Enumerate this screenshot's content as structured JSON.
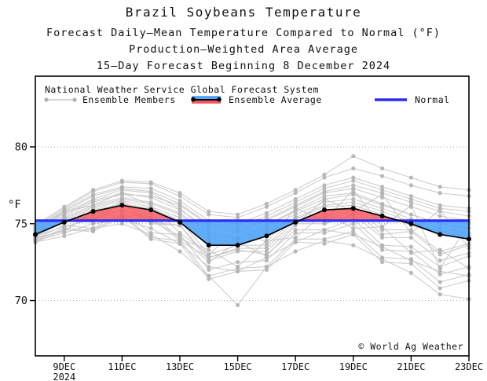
{
  "chart_data": {
    "type": "line",
    "title": "Brazil Soybeans Temperature",
    "subtitles": [
      "Forecast Daily–Mean Temperature Compared to Normal (°F)",
      "Production–Weighted Area Average",
      "15–Day Forecast Beginning 8 December 2024"
    ],
    "ylabel": "°F",
    "watermark": "© World Ag Weather",
    "legend": {
      "header": "National Weather Service Global Forecast System",
      "members_label": "Ensemble Members",
      "average_label": "Ensemble Average",
      "normal_label": "Normal",
      "position": "top-left-inside"
    },
    "grid": "dotted-horizontal",
    "days": [
      8,
      9,
      10,
      11,
      12,
      13,
      14,
      15,
      16,
      17,
      18,
      19,
      20,
      21,
      22,
      23
    ],
    "xtick_days": [
      9,
      11,
      13,
      15,
      17,
      19,
      21,
      23
    ],
    "xtick_labels": [
      "9DEC",
      "11DEC",
      "13DEC",
      "15DEC",
      "17DEC",
      "19DEC",
      "21DEC",
      "23DEC"
    ],
    "year_label": "2024",
    "yticks": [
      70,
      75,
      80
    ],
    "ylim": [
      66.4,
      84.6
    ],
    "normal": 75.2,
    "ensemble_average": [
      74.3,
      75.1,
      75.8,
      76.2,
      75.9,
      75.1,
      73.6,
      73.6,
      74.2,
      75.1,
      75.9,
      76.0,
      75.5,
      75.0,
      74.3,
      74.0
    ],
    "ensemble_members": [
      [
        74.0,
        74.6,
        75.6,
        75.2,
        75.4,
        73.9,
        72.8,
        73.3,
        73.0,
        74.6,
        74.6,
        75.3,
        73.6,
        73.5,
        72.2,
        72.9
      ],
      [
        74.5,
        75.5,
        76.4,
        76.9,
        76.8,
        76.2,
        74.9,
        74.6,
        75.3,
        76.2,
        77.1,
        77.5,
        77.0,
        76.4,
        75.8,
        75.5
      ],
      [
        74.2,
        75.3,
        75.2,
        76.4,
        75.1,
        74.9,
        72.8,
        73.4,
        73.4,
        75.2,
        75.2,
        75.9,
        74.3,
        74.5,
        73.0,
        73.6
      ],
      [
        74.6,
        75.7,
        76.6,
        77.2,
        77.0,
        76.0,
        74.4,
        74.0,
        74.9,
        75.9,
        76.8,
        77.0,
        76.3,
        75.6,
        75.0,
        74.7
      ],
      [
        73.9,
        74.4,
        75.0,
        75.3,
        74.7,
        73.7,
        72.2,
        71.9,
        72.8,
        73.8,
        74.6,
        74.3,
        73.5,
        72.6,
        71.9,
        71.6
      ],
      [
        74.7,
        75.9,
        76.9,
        77.4,
        77.3,
        76.5,
        75.2,
        75.0,
        75.7,
        76.6,
        77.5,
        78.0,
        77.4,
        76.8,
        76.2,
        76.0
      ],
      [
        74.1,
        74.5,
        75.8,
        75.4,
        75.7,
        74.0,
        73.3,
        72.2,
        73.9,
        74.1,
        75.7,
        74.7,
        74.8,
        73.1,
        73.3,
        72.1
      ],
      [
        74.4,
        75.3,
        76.1,
        76.6,
        76.3,
        75.6,
        74.2,
        73.9,
        74.7,
        75.6,
        76.4,
        76.6,
        76.0,
        75.3,
        74.7,
        74.4
      ],
      [
        73.8,
        74.6,
        74.5,
        75.5,
        74.0,
        73.7,
        71.4,
        71.9,
        72.0,
        73.8,
        73.7,
        74.3,
        72.5,
        72.4,
        70.8,
        71.3
      ],
      [
        74.8,
        76.0,
        77.1,
        77.7,
        77.6,
        76.8,
        75.6,
        75.4,
        76.1,
        77.0,
        78.0,
        78.6,
        78.1,
        77.5,
        77.0,
        76.8
      ],
      [
        74.2,
        75.4,
        75.3,
        76.5,
        75.3,
        75.2,
        73.0,
        73.6,
        73.6,
        75.4,
        75.4,
        76.1,
        74.6,
        74.6,
        73.2,
        73.7
      ],
      [
        74.5,
        75.4,
        76.2,
        76.7,
        76.4,
        75.7,
        74.4,
        74.1,
        74.9,
        75.8,
        76.6,
        76.9,
        76.2,
        75.6,
        75.0,
        74.7
      ],
      [
        74.0,
        74.9,
        74.7,
        75.8,
        74.4,
        74.3,
        72.0,
        72.5,
        72.6,
        74.4,
        74.4,
        75.0,
        73.3,
        73.2,
        71.7,
        72.2
      ],
      [
        74.6,
        75.6,
        76.5,
        77.0,
        76.7,
        75.9,
        74.7,
        74.5,
        75.2,
        76.1,
        77.0,
        77.3,
        76.7,
        76.1,
        75.5,
        75.2
      ],
      [
        73.9,
        74.7,
        74.6,
        75.6,
        74.1,
        73.9,
        71.6,
        72.1,
        72.2,
        74.0,
        74.0,
        74.5,
        72.8,
        72.7,
        71.2,
        71.7
      ],
      [
        74.7,
        75.8,
        76.8,
        77.3,
        77.1,
        76.3,
        75.0,
        74.8,
        75.5,
        76.4,
        77.3,
        77.8,
        77.2,
        76.6,
        76.0,
        75.8
      ],
      [
        74.1,
        75.2,
        75.1,
        76.3,
        75.0,
        74.9,
        72.6,
        73.2,
        73.2,
        75.0,
        75.0,
        75.6,
        74.1,
        74.1,
        72.6,
        73.1
      ],
      [
        74.4,
        75.2,
        76.0,
        76.5,
        76.1,
        75.4,
        74.0,
        73.7,
        74.5,
        75.4,
        76.2,
        76.4,
        75.8,
        75.1,
        74.5,
        74.2
      ],
      [
        73.8,
        74.2,
        74.7,
        75.0,
        74.3,
        73.2,
        71.6,
        69.7,
        72.2,
        73.2,
        73.9,
        73.6,
        72.7,
        71.8,
        70.4,
        70.1
      ],
      [
        74.9,
        76.1,
        77.2,
        77.8,
        77.7,
        77.0,
        75.8,
        75.6,
        76.3,
        77.2,
        78.2,
        79.4,
        78.6,
        78.0,
        77.4,
        77.2
      ],
      [
        74.3,
        75.1,
        75.9,
        76.3,
        76.0,
        75.2,
        73.8,
        73.6,
        74.4,
        75.3,
        76.1,
        76.2,
        75.6,
        74.9,
        74.3,
        74.0
      ],
      [
        74.5,
        75.8,
        76.2,
        77.0,
        76.2,
        74.4,
        73.0,
        74.6,
        73.8,
        76.0,
        75.2,
        77.2,
        74.8,
        76.2,
        72.1,
        75.0
      ],
      [
        74.2,
        74.8,
        75.3,
        75.9,
        75.2,
        74.2,
        72.5,
        73.8,
        72.9,
        74.9,
        76.6,
        75.8,
        76.9,
        74.4,
        75.9,
        73.4
      ]
    ],
    "colors": {
      "normal_line": "#2a2cf5",
      "average_line": "#000000",
      "member_line": "#c8c8c8",
      "member_dot": "#b2b2b2",
      "above_fill": "#f8575c",
      "below_fill": "#4da3f8",
      "grid": "#aaaaaa",
      "border": "#000000"
    }
  }
}
